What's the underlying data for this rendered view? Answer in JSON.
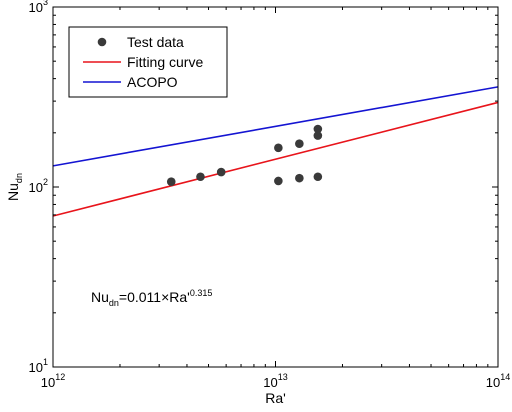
{
  "chart_data": {
    "type": "scatter",
    "title": "",
    "xlabel": "Ra'",
    "ylabel": {
      "base": "Nu",
      "sub": "dn"
    },
    "x_scale": "log",
    "y_scale": "log",
    "xlim": [
      1000000000000.0,
      100000000000000.0
    ],
    "ylim": [
      10,
      1000
    ],
    "grid": false,
    "x_ticks": [
      {
        "value": 1000000000000.0,
        "base": "10",
        "exp": "12"
      },
      {
        "value": 10000000000000.0,
        "base": "10",
        "exp": "13"
      },
      {
        "value": 100000000000000.0,
        "base": "10",
        "exp": "14"
      }
    ],
    "y_ticks": [
      {
        "value": 10,
        "base": "10",
        "exp": "1"
      },
      {
        "value": 100,
        "base": "10",
        "exp": "2"
      },
      {
        "value": 1000,
        "base": "10",
        "exp": "3"
      }
    ],
    "legend_position": "top-left",
    "series": [
      {
        "name": "Test data",
        "kind": "scatter",
        "color": "#3a3a3a",
        "points": [
          [
            3400000000000.0,
            107
          ],
          [
            4600000000000.0,
            114
          ],
          [
            5700000000000.0,
            121
          ],
          [
            10300000000000.0,
            165
          ],
          [
            10300000000000.0,
            108
          ],
          [
            12800000000000.0,
            174
          ],
          [
            12800000000000.0,
            112
          ],
          [
            15500000000000.0,
            210
          ],
          [
            15500000000000.0,
            193
          ],
          [
            15500000000000.0,
            114
          ]
        ]
      },
      {
        "name": "Fitting curve",
        "kind": "line",
        "color": "#e8141b",
        "points": [
          [
            1000000000000.0,
            69
          ],
          [
            100000000000000.0,
            295
          ]
        ]
      },
      {
        "name": "ACOPO",
        "kind": "line",
        "color": "#1414d2",
        "points": [
          [
            1000000000000.0,
            131
          ],
          [
            100000000000000.0,
            360
          ]
        ]
      }
    ],
    "annotation": {
      "prefix": "Nu",
      "sub": "dn",
      "mid": "=0.011×Ra'",
      "sup": "0.315"
    }
  }
}
